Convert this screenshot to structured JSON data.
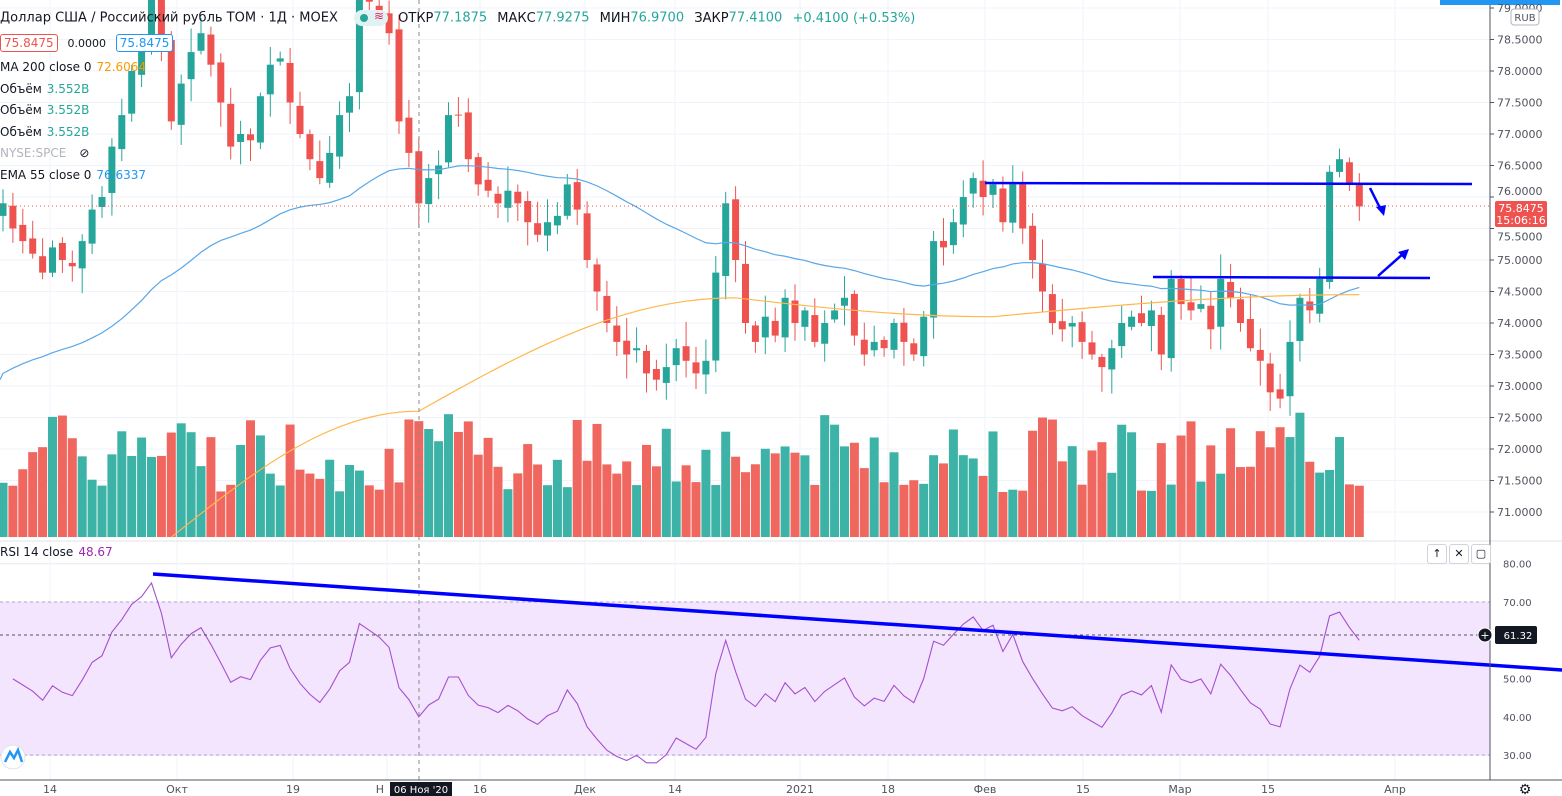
{
  "header": {
    "symbol": "Доллар США / Российский рубль TOM · 1Д · MOEX",
    "open_label": "ОТКР",
    "open": "77.1875",
    "high_label": "МАКС",
    "high": "77.9275",
    "low_label": "МИН",
    "low": "76.9700",
    "close_label": "ЗАКР",
    "close": "77.4100",
    "change": "+0.4100 (+0.53%)"
  },
  "quote": {
    "bid": "75.8475",
    "spread": "0.0000",
    "ask": "75.8475"
  },
  "indicators": [
    {
      "name": "MA 200 close 0",
      "value": "72.6064",
      "color": "#ff9800"
    },
    {
      "name": "Объём",
      "value": "3.552B",
      "color": "#26a69a"
    },
    {
      "name": "Объём",
      "value": "3.552B",
      "color": "#26a69a"
    },
    {
      "name": "Объём",
      "value": "3.552B",
      "color": "#26a69a"
    },
    {
      "name": "NYSE:SPCE",
      "value": "",
      "color": "#b2b5be"
    },
    {
      "name": "EMA 55 close 0",
      "value": "76.6337",
      "color": "#2196f3"
    }
  ],
  "rsi": {
    "name": "RSI 14 close",
    "value": "48.67",
    "last_label": "61.32",
    "ticks": [
      "80.00",
      "70.00",
      "50.00",
      "40.00",
      "30.00"
    ]
  },
  "price_axis": {
    "currency": "RUB",
    "ticks": [
      "79.0000",
      "78.5000",
      "78.0000",
      "77.5000",
      "77.0000",
      "76.5000",
      "76.0000",
      "75.5000",
      "75.0000",
      "74.5000",
      "74.0000",
      "73.5000",
      "73.0000",
      "72.5000",
      "72.0000",
      "71.5000",
      "71.0000"
    ],
    "last_price": "75.8475",
    "countdown": "15:06:16"
  },
  "time_axis": {
    "labels": [
      "14",
      "Окт",
      "19",
      "Н",
      "16",
      "Дек",
      "14",
      "2021",
      "18",
      "Фев",
      "15",
      "Мар",
      "15",
      "Апр"
    ],
    "crosshair": "06 Ноя '20"
  },
  "colors": {
    "up": "#26a69a",
    "down": "#ef5350",
    "ema": "#2196f3",
    "ma": "#ff9800",
    "rsi": "#9c27b0",
    "drawing": "#0000ff"
  },
  "chart_data": {
    "type": "candlestick",
    "closes": [
      75.9,
      75.5,
      75.3,
      75.1,
      74.8,
      75.2,
      75.0,
      74.9,
      75.3,
      75.8,
      76.0,
      76.8,
      77.3,
      78.0,
      78.4,
      79.2,
      78.5,
      77.2,
      77.8,
      78.3,
      78.6,
      78.1,
      77.5,
      76.8,
      77.0,
      76.9,
      77.6,
      78.1,
      78.2,
      77.5,
      77.0,
      76.6,
      76.3,
      76.7,
      77.3,
      77.6,
      79.3,
      79.1,
      78.9,
      78.6,
      77.2,
      76.7,
      75.9,
      76.3,
      76.5,
      77.3,
      77.3,
      76.6,
      76.2,
      76.1,
      75.9,
      76.1,
      75.9,
      75.6,
      75.4,
      75.6,
      75.7,
      76.2,
      75.8,
      75.0,
      74.5,
      74.0,
      73.7,
      73.5,
      73.6,
      73.2,
      73.1,
      73.3,
      73.6,
      73.4,
      73.2,
      73.4,
      74.8,
      75.9,
      75.0,
      74.0,
      73.7,
      74.1,
      73.8,
      74.4,
      74.0,
      74.2,
      73.7,
      74.0,
      74.2,
      74.4,
      73.8,
      73.5,
      73.7,
      73.6,
      74.0,
      73.7,
      73.5,
      74.1,
      75.3,
      75.2,
      75.6,
      76.0,
      76.3,
      76.0,
      76.2,
      75.6,
      76.2,
      75.5,
      75.0,
      74.5,
      74.0,
      73.9,
      74.0,
      73.7,
      73.5,
      73.3,
      73.6,
      74.0,
      74.1,
      74.0,
      74.2,
      73.5,
      74.7,
      74.3,
      74.2,
      74.3,
      73.9,
      74.7,
      74.4,
      74.0,
      73.6,
      73.4,
      72.9,
      72.8,
      73.7,
      74.4,
      74.2,
      74.7,
      76.4,
      76.6,
      76.2,
      75.85
    ],
    "ylim": [
      70.6,
      79.1
    ],
    "rsi_range": [
      20,
      85
    ]
  }
}
